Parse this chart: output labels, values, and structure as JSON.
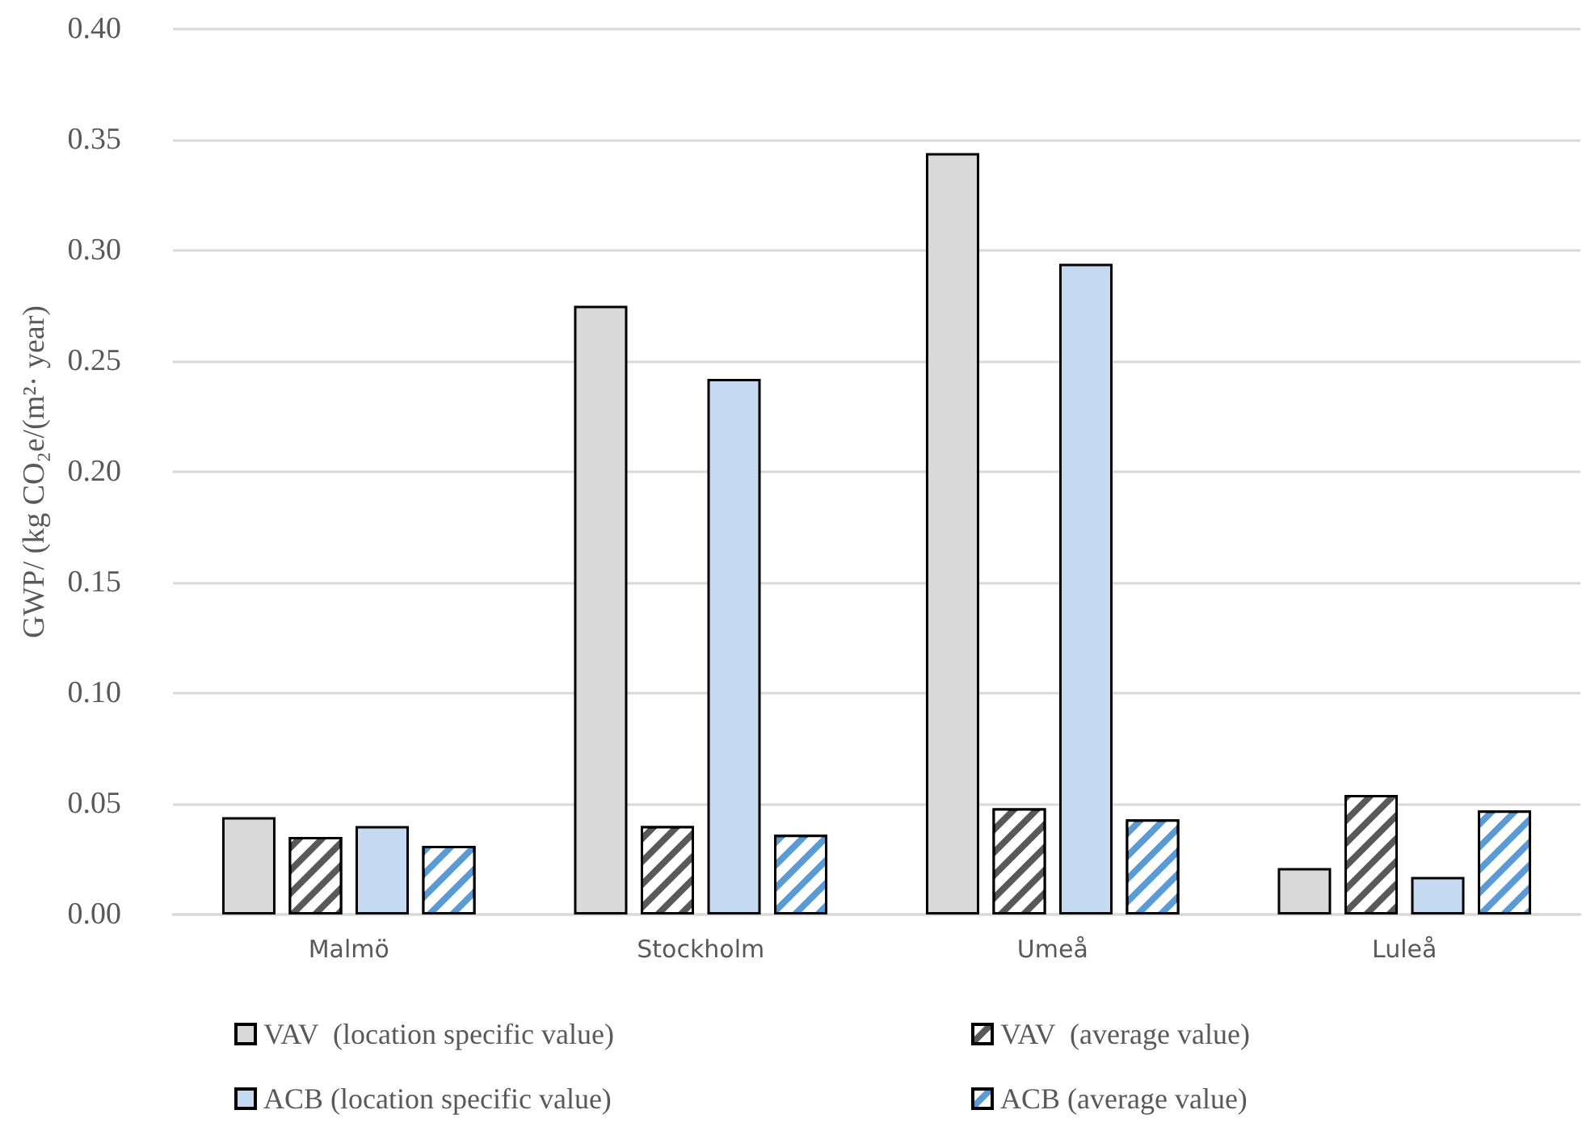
{
  "chart_data": {
    "type": "bar",
    "ylabel": "GWP/ (kg CO₂e/(m²· year)",
    "categories": [
      "Malmö",
      "Stockholm",
      "Umeå",
      "Luleå"
    ],
    "series": [
      {
        "name": "VAV  (location specific value)",
        "color": "#d9d9d9",
        "values": [
          0.044,
          0.275,
          0.344,
          0.021
        ]
      },
      {
        "name": "VAV  (average value)",
        "color": "#595959",
        "values": [
          0.035,
          0.04,
          0.048,
          0.054
        ]
      },
      {
        "name": "ACB (location specific value)",
        "color": "#c5d9f1",
        "values": [
          0.04,
          0.242,
          0.294,
          0.017
        ]
      },
      {
        "name": "ACB (average value)",
        "color": "#5b9bd5",
        "values": [
          0.031,
          0.036,
          0.043,
          0.047
        ]
      }
    ],
    "ylim": [
      0,
      0.4
    ],
    "yticks": [
      {
        "value": 0,
        "label": "0.00"
      },
      0.05,
      {
        "value": 0.1,
        "label": "0.10"
      },
      0.15,
      {
        "value": 0.2,
        "label": "0.20"
      },
      0.25,
      {
        "value": 0.3,
        "label": "0.30"
      },
      0.35,
      {
        "value": 0.4,
        "label": "0.40"
      }
    ],
    "grid": "y",
    "legend": "bottom"
  }
}
